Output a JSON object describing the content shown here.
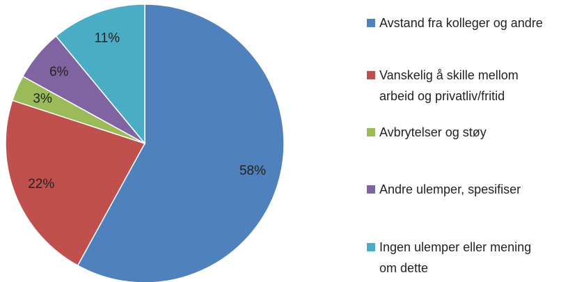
{
  "chart_data": {
    "type": "pie",
    "categories": [
      "Avstand fra kolleger og andre",
      "Vanskelig å skille mellom arbeid og privatliv/fritid",
      "Avbrytelser og støy",
      "Andre ulemper, spesifiser",
      "Ingen ulemper eller mening om dette"
    ],
    "values": [
      58,
      22,
      3,
      6,
      11
    ],
    "value_labels": [
      "58%",
      "22%",
      "3%",
      "6%",
      "11%"
    ],
    "colors": [
      "#4f81bd",
      "#c0504d",
      "#9bbb59",
      "#8064a2",
      "#4bacc6"
    ],
    "legend": "right"
  }
}
